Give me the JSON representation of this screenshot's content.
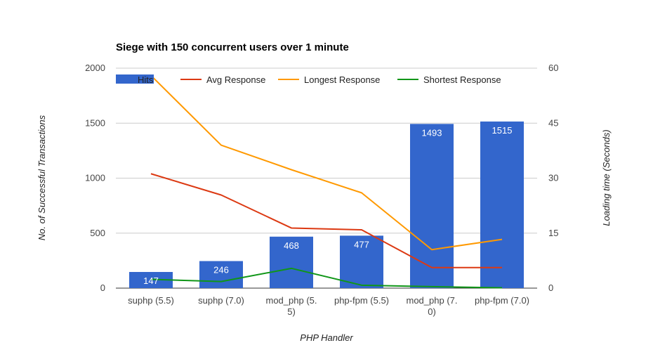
{
  "chart_data": {
    "type": "bar",
    "title": "Siege with 150 concurrent users over 1 minute",
    "xlabel": "PHP Handler",
    "ylabel": "No. of Successful Transactions",
    "y2label": "Loading time (Seconds)",
    "categories": [
      [
        "suphp (5.5)"
      ],
      [
        "suphp (7.0)"
      ],
      [
        "mod_php (5.",
        "5)"
      ],
      [
        "php-fpm (5.5)"
      ],
      [
        "mod_php (7.",
        "0)"
      ],
      [
        "php-fpm (7.0)"
      ]
    ],
    "ylim": [
      0,
      2000
    ],
    "yticks": [
      "0",
      "500",
      "1000",
      "1500",
      "2000"
    ],
    "y2lim": [
      0,
      60
    ],
    "y2ticks": [
      "0",
      "15",
      "30",
      "45",
      "60"
    ],
    "grid": true,
    "legend_position": "top",
    "series": [
      {
        "name": "Hits",
        "type": "bar",
        "axis": "left",
        "color": "#3366cc",
        "values": [
          147,
          246,
          468,
          477,
          1493,
          1515
        ],
        "labels": [
          "147",
          "246",
          "468",
          "477",
          "1493",
          "1515"
        ]
      },
      {
        "name": "Avg Response",
        "type": "line",
        "axis": "right",
        "color": "#dc3912",
        "values": [
          31.2,
          25.4,
          16.4,
          15.9,
          5.6,
          5.6
        ]
      },
      {
        "name": "Longest Response",
        "type": "line",
        "axis": "right",
        "color": "#ff9900",
        "values": [
          58.0,
          39.0,
          32.3,
          26.0,
          10.5,
          13.3
        ]
      },
      {
        "name": "Shortest Response",
        "type": "line",
        "axis": "right",
        "color": "#109618",
        "values": [
          2.4,
          1.8,
          5.4,
          0.8,
          0.4,
          0.1
        ]
      }
    ]
  }
}
